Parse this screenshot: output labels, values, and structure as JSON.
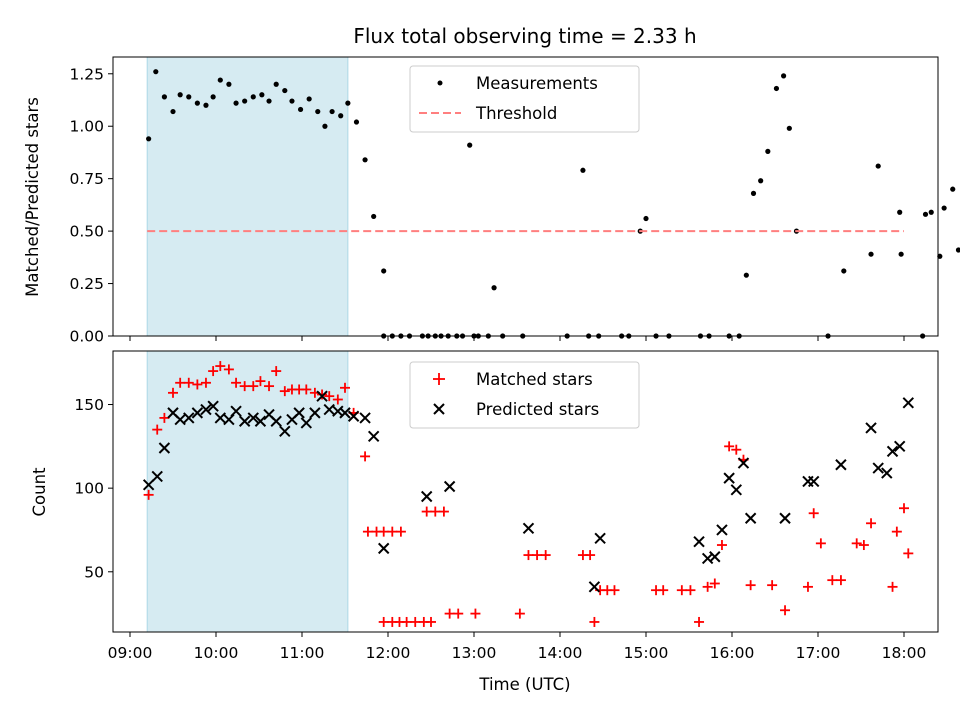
{
  "chart_data": [
    {
      "type": "scatter",
      "title": "Flux total observing time = 2.33 h",
      "xlabel": "",
      "ylabel": "Matched/Predicted stars",
      "ylim": [
        0,
        1.33
      ],
      "yticks": [
        "0.00",
        "0.25",
        "0.50",
        "0.75",
        "1.00",
        "1.25"
      ],
      "shaded_span": [
        "09:12",
        "11:32"
      ],
      "shaded_color": "#add8e6",
      "legend_position": "upper center",
      "series": [
        {
          "name": "Measurements",
          "marker": "dot",
          "color": "#000000",
          "points": [
            [
              "09:13",
              0.94
            ],
            [
              "09:18",
              1.26
            ],
            [
              "09:24",
              1.14
            ],
            [
              "09:30",
              1.07
            ],
            [
              "09:35",
              1.15
            ],
            [
              "09:41",
              1.14
            ],
            [
              "09:47",
              1.11
            ],
            [
              "09:53",
              1.1
            ],
            [
              "09:58",
              1.14
            ],
            [
              "10:03",
              1.22
            ],
            [
              "10:09",
              1.2
            ],
            [
              "10:14",
              1.11
            ],
            [
              "10:20",
              1.12
            ],
            [
              "10:26",
              1.14
            ],
            [
              "10:32",
              1.15
            ],
            [
              "10:37",
              1.12
            ],
            [
              "10:42",
              1.2
            ],
            [
              "10:48",
              1.17
            ],
            [
              "10:53",
              1.12
            ],
            [
              "10:59",
              1.08
            ],
            [
              "11:05",
              1.13
            ],
            [
              "11:11",
              1.07
            ],
            [
              "11:16",
              1.0
            ],
            [
              "11:21",
              1.07
            ],
            [
              "11:27",
              1.05
            ],
            [
              "11:32",
              1.11
            ],
            [
              "11:38",
              1.02
            ],
            [
              "11:44",
              0.84
            ],
            [
              "11:50",
              0.57
            ],
            [
              "11:57",
              0.0
            ],
            [
              "12:03",
              0.0
            ],
            [
              "12:09",
              0.0
            ],
            [
              "12:15",
              0.0
            ],
            [
              "11:57",
              0.31
            ],
            [
              "12:24",
              0.0
            ],
            [
              "12:28",
              0.0
            ],
            [
              "12:33",
              0.0
            ],
            [
              "12:37",
              0.0
            ],
            [
              "12:42",
              0.0
            ],
            [
              "12:48",
              0.0
            ],
            [
              "12:52",
              0.0
            ],
            [
              "12:57",
              0.91
            ],
            [
              "13:00",
              0.0
            ],
            [
              "13:03",
              0.0
            ],
            [
              "13:10",
              0.0
            ],
            [
              "13:14",
              0.23
            ],
            [
              "13:20",
              0.0
            ],
            [
              "13:34",
              0.0
            ],
            [
              "14:05",
              0.0
            ],
            [
              "14:16",
              0.79
            ],
            [
              "14:20",
              0.0
            ],
            [
              "14:27",
              0.0
            ],
            [
              "14:43",
              0.0
            ],
            [
              "14:48",
              0.0
            ],
            [
              "14:56",
              0.5
            ],
            [
              "15:00",
              0.56
            ],
            [
              "15:07",
              0.0
            ],
            [
              "15:16",
              0.0
            ],
            [
              "15:38",
              0.0
            ],
            [
              "15:44",
              0.0
            ],
            [
              "15:58",
              0.0
            ],
            [
              "16:05",
              0.0
            ],
            [
              "16:10",
              0.29
            ],
            [
              "16:15",
              0.68
            ],
            [
              "16:20",
              0.74
            ],
            [
              "16:25",
              0.88
            ],
            [
              "16:31",
              1.18
            ],
            [
              "16:36",
              1.24
            ],
            [
              "16:40",
              0.99
            ],
            [
              "16:45",
              0.5
            ],
            [
              "17:07",
              0.0
            ],
            [
              "17:18",
              0.31
            ],
            [
              "17:37",
              0.39
            ],
            [
              "17:42",
              0.81
            ],
            [
              "17:57",
              0.59
            ],
            [
              "17:58",
              0.39
            ],
            [
              "18:13",
              0.0
            ],
            [
              "18:15",
              0.58
            ],
            [
              "18:19",
              0.59
            ],
            [
              "18:25",
              0.38
            ],
            [
              "18:28",
              0.61
            ],
            [
              "18:34",
              0.7
            ],
            [
              "18:38",
              0.41
            ]
          ]
        },
        {
          "name": "Threshold",
          "marker": "dashed-line",
          "color": "#ff7f7f",
          "points": [
            [
              "09:12",
              0.5
            ],
            [
              "18:00",
              0.5
            ]
          ]
        }
      ]
    },
    {
      "type": "scatter",
      "title": "",
      "xlabel": "Time (UTC)",
      "ylabel": "Count",
      "ylim": [
        14,
        182
      ],
      "yticks": [
        "50",
        "100",
        "150"
      ],
      "xticks": [
        "09:00",
        "10:00",
        "11:00",
        "12:00",
        "13:00",
        "14:00",
        "15:00",
        "16:00",
        "17:00",
        "18:00"
      ],
      "shaded_span": [
        "09:12",
        "11:32"
      ],
      "shaded_color": "#add8e6",
      "legend_position": "upper center",
      "series": [
        {
          "name": "Matched stars",
          "marker": "plus",
          "color": "#ff0000",
          "points": [
            [
              "09:13",
              96
            ],
            [
              "09:19",
              135
            ],
            [
              "09:24",
              142
            ],
            [
              "09:30",
              157
            ],
            [
              "09:35",
              163
            ],
            [
              "09:41",
              163
            ],
            [
              "09:47",
              162
            ],
            [
              "09:53",
              163
            ],
            [
              "09:58",
              170
            ],
            [
              "10:03",
              173
            ],
            [
              "10:09",
              171
            ],
            [
              "10:14",
              163
            ],
            [
              "10:20",
              161
            ],
            [
              "10:26",
              161
            ],
            [
              "10:31",
              164
            ],
            [
              "10:37",
              161
            ],
            [
              "10:42",
              170
            ],
            [
              "10:48",
              158
            ],
            [
              "10:53",
              159
            ],
            [
              "10:58",
              159
            ],
            [
              "11:03",
              159
            ],
            [
              "11:09",
              157
            ],
            [
              "11:14",
              156
            ],
            [
              "11:19",
              155
            ],
            [
              "11:25",
              153
            ],
            [
              "11:30",
              160
            ],
            [
              "11:36",
              145
            ],
            [
              "11:44",
              119
            ],
            [
              "11:46",
              74
            ],
            [
              "11:52",
              74
            ],
            [
              "11:57",
              74
            ],
            [
              "12:03",
              74
            ],
            [
              "12:09",
              74
            ],
            [
              "11:57",
              20
            ],
            [
              "12:03",
              20
            ],
            [
              "12:08",
              20
            ],
            [
              "12:13",
              20
            ],
            [
              "12:19",
              20
            ],
            [
              "12:25",
              20
            ],
            [
              "12:30",
              20
            ],
            [
              "12:27",
              86
            ],
            [
              "12:33",
              86
            ],
            [
              "12:39",
              86
            ],
            [
              "12:43",
              25
            ],
            [
              "12:49",
              25
            ],
            [
              "13:01",
              25
            ],
            [
              "13:32",
              25
            ],
            [
              "13:38",
              60
            ],
            [
              "13:44",
              60
            ],
            [
              "13:50",
              60
            ],
            [
              "14:16",
              60
            ],
            [
              "14:21",
              60
            ],
            [
              "14:24",
              20
            ],
            [
              "14:28",
              39
            ],
            [
              "14:33",
              39
            ],
            [
              "14:38",
              39
            ],
            [
              "15:07",
              39
            ],
            [
              "15:12",
              39
            ],
            [
              "15:25",
              39
            ],
            [
              "15:31",
              39
            ],
            [
              "15:37",
              20
            ],
            [
              "15:43",
              41
            ],
            [
              "15:48",
              43
            ],
            [
              "15:53",
              66
            ],
            [
              "15:58",
              125
            ],
            [
              "16:03",
              123
            ],
            [
              "16:08",
              117
            ],
            [
              "16:13",
              42
            ],
            [
              "16:28",
              42
            ],
            [
              "16:37",
              27
            ],
            [
              "16:53",
              41
            ],
            [
              "16:57",
              85
            ],
            [
              "17:02",
              67
            ],
            [
              "17:10",
              45
            ],
            [
              "17:16",
              45
            ],
            [
              "17:27",
              67
            ],
            [
              "17:32",
              66
            ],
            [
              "17:37",
              79
            ],
            [
              "17:52",
              41
            ],
            [
              "17:55",
              74
            ],
            [
              "18:00",
              88
            ],
            [
              "18:03",
              61
            ]
          ]
        },
        {
          "name": "Predicted stars",
          "marker": "x",
          "color": "#000000",
          "points": [
            [
              "09:13",
              102
            ],
            [
              "09:19",
              107
            ],
            [
              "09:24",
              124
            ],
            [
              "09:30",
              145
            ],
            [
              "09:35",
              141
            ],
            [
              "09:41",
              142
            ],
            [
              "09:47",
              145
            ],
            [
              "09:53",
              147
            ],
            [
              "09:58",
              149
            ],
            [
              "10:03",
              142
            ],
            [
              "10:09",
              141
            ],
            [
              "10:14",
              146
            ],
            [
              "10:20",
              140
            ],
            [
              "10:26",
              142
            ],
            [
              "10:31",
              140
            ],
            [
              "10:37",
              144
            ],
            [
              "10:42",
              140
            ],
            [
              "10:48",
              134
            ],
            [
              "10:53",
              141
            ],
            [
              "10:58",
              145
            ],
            [
              "11:03",
              139
            ],
            [
              "11:09",
              145
            ],
            [
              "11:14",
              155
            ],
            [
              "11:19",
              147
            ],
            [
              "11:25",
              146
            ],
            [
              "11:30",
              145
            ],
            [
              "11:36",
              143
            ],
            [
              "11:44",
              142
            ],
            [
              "11:50",
              131
            ],
            [
              "11:57",
              64
            ],
            [
              "12:27",
              95
            ],
            [
              "12:43",
              101
            ],
            [
              "13:38",
              76
            ],
            [
              "14:24",
              41
            ],
            [
              "14:28",
              70
            ],
            [
              "15:37",
              68
            ],
            [
              "15:43",
              58
            ],
            [
              "15:48",
              59
            ],
            [
              "15:53",
              75
            ],
            [
              "15:58",
              106
            ],
            [
              "16:03",
              99
            ],
            [
              "16:08",
              115
            ],
            [
              "16:13",
              82
            ],
            [
              "16:37",
              82
            ],
            [
              "16:53",
              104
            ],
            [
              "16:57",
              104
            ],
            [
              "17:16",
              114
            ],
            [
              "17:37",
              136
            ],
            [
              "17:42",
              112
            ],
            [
              "17:48",
              109
            ],
            [
              "17:52",
              122
            ],
            [
              "17:57",
              125
            ],
            [
              "18:03",
              151
            ]
          ]
        }
      ]
    }
  ]
}
